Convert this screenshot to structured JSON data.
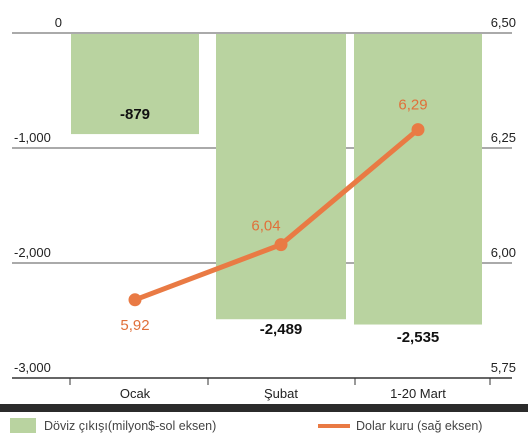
{
  "chart_data": {
    "type": "bar+line",
    "categories": [
      "Ocak",
      "Şubat",
      "1-20 Mart"
    ],
    "series": [
      {
        "name": "Döviz çıkışı(milyon$-sol eksen)",
        "type": "bar",
        "axis": "left",
        "color": "#b9d3a0",
        "values": [
          -879,
          -2489,
          -2535
        ],
        "labels": [
          "-879",
          "-2,489",
          "-2,535"
        ]
      },
      {
        "name": "Dolar kuru (sağ eksen)",
        "type": "line",
        "axis": "right",
        "color": "#e97a44",
        "values": [
          5.92,
          6.04,
          6.29
        ],
        "labels": [
          "5,92",
          "6,04",
          "6,29"
        ]
      }
    ],
    "left_axis": {
      "ylim": [
        -3000,
        0
      ],
      "ticks": [
        0,
        -1000,
        -2000,
        -3000
      ],
      "tick_labels": [
        "0",
        "-1,000",
        "-2,000",
        "-3,000"
      ]
    },
    "right_axis": {
      "ylim": [
        5.75,
        6.5
      ],
      "ticks": [
        6.5,
        6.25,
        6.0,
        5.75
      ],
      "tick_labels": [
        "6,50",
        "6,25",
        "6,00",
        "5,75"
      ]
    },
    "grid": true,
    "legend_position": "bottom"
  }
}
